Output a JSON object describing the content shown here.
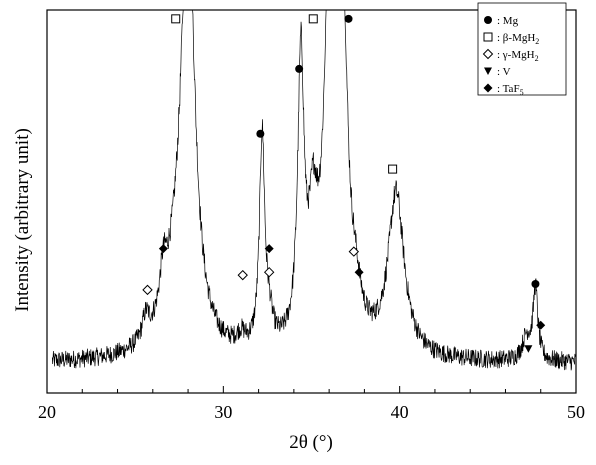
{
  "chart_data": {
    "type": "line",
    "xlabel": "2θ (°)",
    "ylabel": "Intensity (arbitrary unit)",
    "xlim": [
      20,
      50
    ],
    "xticks": [
      20,
      30,
      40,
      50
    ],
    "y_ticks_shown": false,
    "grid": false,
    "legend_position": "top-right",
    "pattern": {
      "name": "",
      "color": "#000000",
      "baseline": 0.1,
      "noise": 0.03,
      "peaks": [
        {
          "center": 25.6,
          "height": 0.08,
          "width": 0.25
        },
        {
          "center": 26.6,
          "height": 0.14,
          "width": 0.25
        },
        {
          "center": 28.0,
          "height": 1.45,
          "width": 0.45
        },
        {
          "center": 27.4,
          "height": 0.2,
          "width": 0.9
        },
        {
          "center": 31.0,
          "height": 0.04,
          "width": 0.3
        },
        {
          "center": 32.2,
          "height": 0.72,
          "width": 0.18
        },
        {
          "center": 32.6,
          "height": 0.08,
          "width": 0.25
        },
        {
          "center": 34.4,
          "height": 0.95,
          "width": 0.22
        },
        {
          "center": 35.1,
          "height": 0.35,
          "width": 0.3
        },
        {
          "center": 36.1,
          "height": 1.55,
          "width": 0.38
        },
        {
          "center": 36.8,
          "height": 0.95,
          "width": 0.3
        },
        {
          "center": 37.5,
          "height": 0.12,
          "width": 0.4
        },
        {
          "center": 39.8,
          "height": 0.55,
          "width": 0.55
        },
        {
          "center": 47.2,
          "height": 0.08,
          "width": 0.3
        },
        {
          "center": 47.7,
          "height": 0.24,
          "width": 0.16
        }
      ]
    },
    "annotations": [
      {
        "phase": "Mg",
        "x": 32.1,
        "y": 0.88
      },
      {
        "phase": "Mg",
        "x": 34.3,
        "y": 1.1
      },
      {
        "phase": "Mg",
        "x": 37.1,
        "y": 1.27
      },
      {
        "phase": "Mg",
        "x": 47.7,
        "y": 0.37
      },
      {
        "phase": "β-MgH2",
        "x": 27.3,
        "y": 1.27
      },
      {
        "phase": "β-MgH2",
        "x": 35.1,
        "y": 1.27
      },
      {
        "phase": "β-MgH2",
        "x": 39.6,
        "y": 0.76
      },
      {
        "phase": "γ-MgH2",
        "x": 25.7,
        "y": 0.35
      },
      {
        "phase": "γ-MgH2",
        "x": 31.1,
        "y": 0.4
      },
      {
        "phase": "γ-MgH2",
        "x": 32.6,
        "y": 0.41
      },
      {
        "phase": "γ-MgH2",
        "x": 37.4,
        "y": 0.48
      },
      {
        "phase": "V",
        "x": 47.3,
        "y": 0.15
      },
      {
        "phase": "TaF5",
        "x": 26.6,
        "y": 0.49
      },
      {
        "phase": "TaF5",
        "x": 32.6,
        "y": 0.49
      },
      {
        "phase": "TaF5",
        "x": 37.7,
        "y": 0.41
      },
      {
        "phase": "TaF5",
        "x": 48.0,
        "y": 0.23
      }
    ],
    "legend": [
      {
        "key": "Mg",
        "marker": "circle-filled",
        "label": ": Mg"
      },
      {
        "key": "β-MgH2",
        "marker": "square-open",
        "label_prefix": ": β-MgH",
        "label_sub": "2"
      },
      {
        "key": "γ-MgH2",
        "marker": "diamond-open",
        "label_prefix": ": γ-MgH",
        "label_sub": "2"
      },
      {
        "key": "V",
        "marker": "triangle-down-filled",
        "label": ": V"
      },
      {
        "key": "TaF5",
        "marker": "diamond-filled",
        "label_prefix": ": TaF",
        "label_sub": "5"
      }
    ]
  }
}
